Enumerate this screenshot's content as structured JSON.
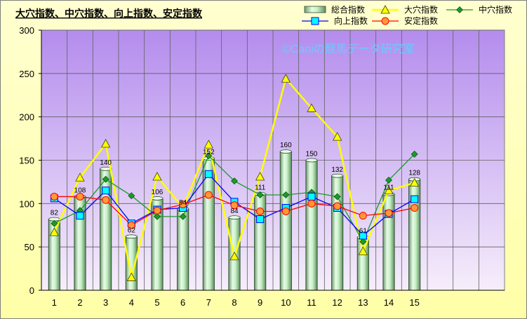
{
  "chart_data": {
    "type": "bar",
    "title": "大穴指数、中穴指数、向上指数、安定指数",
    "watermark": "©Caniの競馬データ研究室",
    "categories": [
      "1",
      "2",
      "3",
      "4",
      "5",
      "6",
      "7",
      "8",
      "9",
      "10",
      "11",
      "12",
      "13",
      "14",
      "15"
    ],
    "ylim": [
      0,
      300
    ],
    "yticks": [
      "0",
      "50",
      "100",
      "150",
      "200",
      "250",
      "300"
    ],
    "grid": true,
    "legend_position": "top-right",
    "bar_series": {
      "name": "総合指数",
      "values": [
        82,
        108,
        140,
        62,
        106,
        94,
        152,
        84,
        111,
        160,
        150,
        132,
        61,
        111,
        128
      ],
      "labels": [
        "82",
        "108",
        "140",
        "62",
        "106",
        "94",
        "152",
        "84",
        "111",
        "160",
        "150",
        "132",
        "61",
        "111",
        "128"
      ],
      "color": "#c8f0c8"
    },
    "line_series": [
      {
        "name": "大穴指数",
        "marker": "triangle",
        "color": "#ffff00",
        "values": [
          67,
          130,
          169,
          15,
          131,
          95,
          168,
          39,
          131,
          244,
          210,
          177,
          45,
          115,
          124
        ]
      },
      {
        "name": "中穴指数",
        "marker": "diamond",
        "color": "#1a9a2a",
        "values": [
          77,
          92,
          128,
          109,
          85,
          85,
          155,
          126,
          110,
          110,
          113,
          108,
          56,
          127,
          157
        ]
      },
      {
        "name": "向上指数",
        "marker": "square",
        "color": "#0000ff",
        "values": [
          106,
          86,
          115,
          77,
          93,
          95,
          134,
          102,
          82,
          95,
          108,
          95,
          63,
          88,
          105
        ]
      },
      {
        "name": "安定指数",
        "marker": "circle",
        "color": "#ff0000",
        "values": [
          108,
          108,
          104,
          75,
          92,
          99,
          110,
          98,
          91,
          91,
          100,
          97,
          86,
          89,
          95
        ]
      }
    ]
  }
}
